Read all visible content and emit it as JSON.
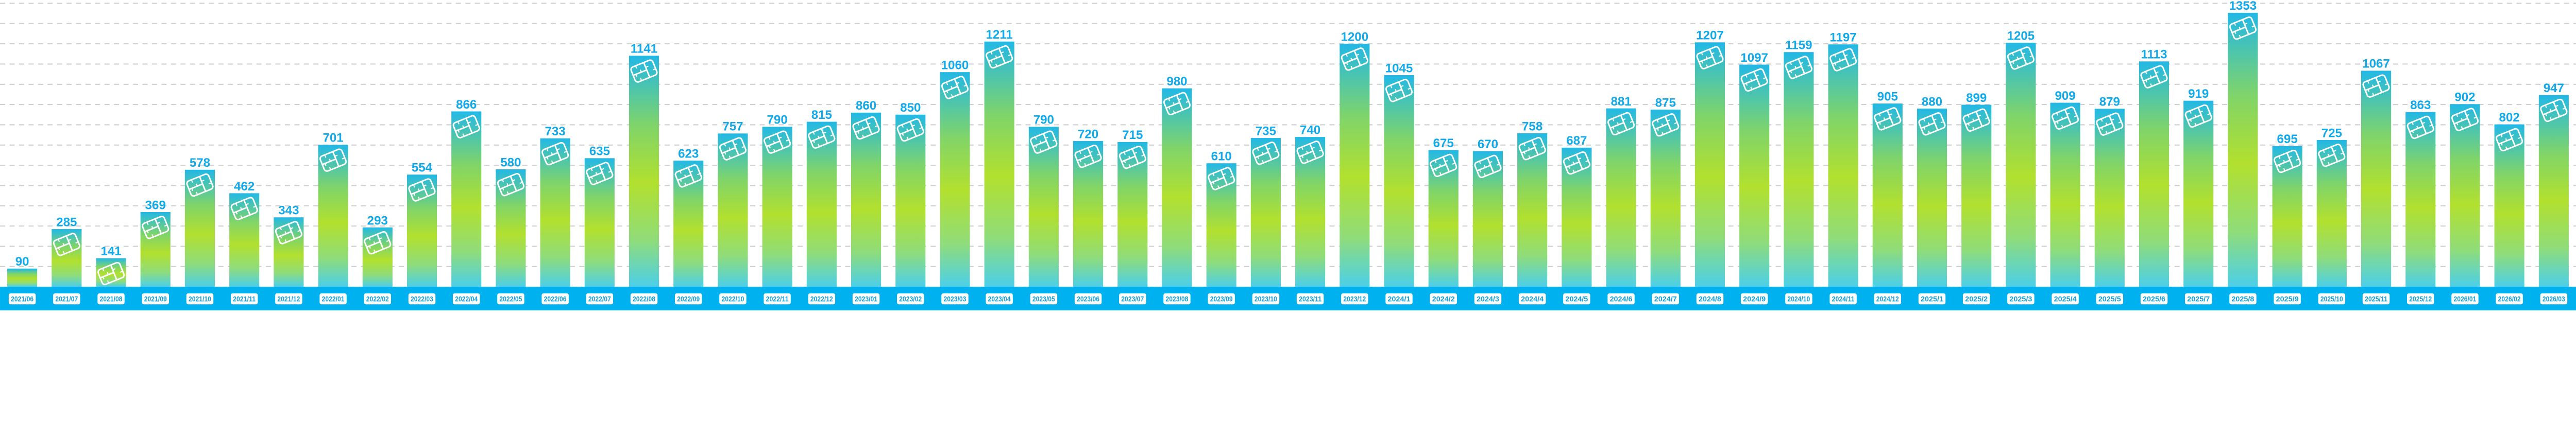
{
  "chart_data": {
    "type": "bar",
    "title": "",
    "xlabel": "",
    "ylabel": "",
    "ylim": [
      0,
      1420
    ],
    "grid": "horizontal dashed, every 100",
    "legend": "none",
    "bar_icon": "sim-chip-icon",
    "colors": {
      "bar_top": "#22b8e6",
      "bar_mid": "#b2e02e",
      "bar_bottom": "#4ccfe9",
      "axis_band": "#00b1f0",
      "value_label": "#12a9ea",
      "grid": "#cfcfcf"
    },
    "categories": [
      "2021/06",
      "2021/07",
      "2021/08",
      "2021/09",
      "2021/10",
      "2021/11",
      "2021/12",
      "2022/01",
      "2022/02",
      "2022/03",
      "2022/04",
      "2022/05",
      "2022/06",
      "2022/07",
      "2022/08",
      "2022/09",
      "2022/10",
      "2022/11",
      "2022/12",
      "2023/01",
      "2023/02",
      "2023/03",
      "2023/04",
      "2023/05",
      "2023/06",
      "2023/07",
      "2023/08",
      "2023/09",
      "2023/10",
      "2023/11",
      "2023/12",
      "2024/1",
      "2024/2",
      "2024/3",
      "2024/4",
      "2024/5",
      "2024/6",
      "2024/7",
      "2024/8",
      "2024/9",
      "2024/10",
      "2024/11",
      "2024/12",
      "2025/1",
      "2025/2",
      "2025/3",
      "2025/4",
      "2025/5",
      "2025/6",
      "2025/7",
      "2025/8",
      "2025/9",
      "2025/10",
      "2025/11",
      "2025/12",
      "2026/01",
      "2026/02",
      "2026/03"
    ],
    "values": [
      90,
      285,
      141,
      369,
      578,
      462,
      343,
      701,
      293,
      554,
      866,
      580,
      733,
      635,
      1141,
      623,
      757,
      790,
      815,
      860,
      850,
      1060,
      1211,
      790,
      720,
      715,
      980,
      610,
      735,
      740,
      1200,
      1045,
      675,
      670,
      758,
      687,
      881,
      875,
      1207,
      1097,
      1159,
      1197,
      905,
      880,
      899,
      1205,
      909,
      879,
      1113,
      919,
      1353,
      695,
      725,
      1067,
      863,
      902,
      802,
      947
    ]
  }
}
